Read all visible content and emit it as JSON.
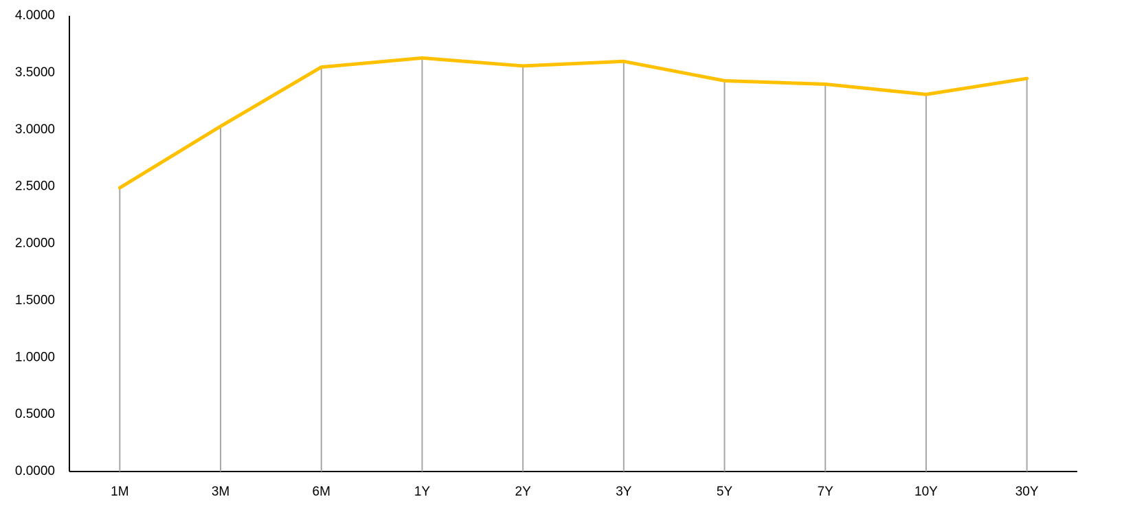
{
  "chart_data": {
    "type": "line",
    "categories": [
      "1M",
      "3M",
      "6M",
      "1Y",
      "2Y",
      "3Y",
      "5Y",
      "7Y",
      "10Y",
      "30Y"
    ],
    "values": [
      2.49,
      3.03,
      3.55,
      3.63,
      3.56,
      3.6,
      3.43,
      3.4,
      3.31,
      3.45
    ],
    "color": "#ffc000",
    "drop_lines": true,
    "ylim": [
      0,
      4
    ],
    "yticks": [
      {
        "value": 0,
        "label": "0.0000"
      },
      {
        "value": 0.5,
        "label": "0.5000"
      },
      {
        "value": 1,
        "label": "1.0000"
      },
      {
        "value": 1.5,
        "label": "1.5000"
      },
      {
        "value": 2,
        "label": "2.0000"
      },
      {
        "value": 2.5,
        "label": "2.5000"
      },
      {
        "value": 3,
        "label": "3.0000"
      },
      {
        "value": 3.5,
        "label": "3.5000"
      },
      {
        "value": 4,
        "label": "4.0000"
      }
    ],
    "grid": false
  }
}
